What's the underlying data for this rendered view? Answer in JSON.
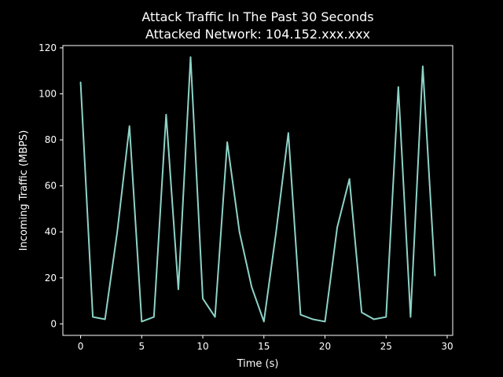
{
  "chart_data": {
    "type": "line",
    "title": "Attack Traffic In The Past 30 Seconds",
    "subtitle": "Attacked Network: 104.152.xxx.xxx",
    "xlabel": "Time (s)",
    "ylabel": "Incoming Traffic (MBPS)",
    "xlim": [
      -1.45,
      30.45
    ],
    "ylim": [
      -5,
      121
    ],
    "xticks": [
      0,
      5,
      10,
      15,
      20,
      25,
      30
    ],
    "yticks": [
      0,
      20,
      40,
      60,
      80,
      100,
      120
    ],
    "grid": false,
    "legend": "none",
    "colors": {
      "background": "#000000",
      "foreground": "#ffffff",
      "series": "#8dd3c7"
    },
    "series": [
      {
        "x": [
          0,
          1,
          2,
          3,
          4,
          5,
          6,
          7,
          8,
          9,
          10,
          11,
          12,
          13,
          14,
          15,
          16,
          17,
          18,
          19,
          20,
          21,
          22,
          23,
          24,
          25,
          26,
          27,
          28,
          29
        ],
        "values": [
          105,
          3,
          2,
          40,
          86,
          1,
          3,
          91,
          15,
          116,
          11,
          3,
          79,
          40,
          16,
          1,
          40,
          83,
          4,
          2,
          1,
          42,
          63,
          5,
          2,
          3,
          103,
          3,
          112,
          21
        ]
      }
    ]
  }
}
